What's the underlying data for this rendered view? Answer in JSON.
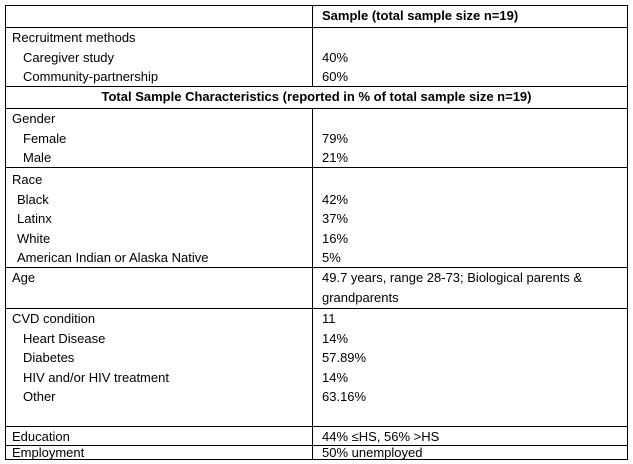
{
  "header": {
    "sample": "Sample (total sample size n=19)"
  },
  "recruitment": {
    "label": "Recruitment methods",
    "items": [
      {
        "label": "Caregiver study",
        "value": "40%"
      },
      {
        "label": "Community-partnership",
        "value": "60%"
      }
    ]
  },
  "section_title": "Total Sample Characteristics (reported in % of total sample size n=19)",
  "gender": {
    "label": "Gender",
    "items": [
      {
        "label": "Female",
        "value": "79%"
      },
      {
        "label": "Male",
        "value": "21%"
      }
    ]
  },
  "race": {
    "label": "Race",
    "items": [
      {
        "label": "Black",
        "value": "42%"
      },
      {
        "label": "Latinx",
        "value": "37%"
      },
      {
        "label": "White",
        "value": "16%"
      },
      {
        "label": "American Indian or Alaska Native",
        "value": "5%"
      }
    ]
  },
  "age": {
    "label": "Age",
    "value_line1": "49.7 years, range 28-73; Biological parents &",
    "value_line2": "grandparents"
  },
  "cvd": {
    "label": "CVD condition",
    "value": "11",
    "items": [
      {
        "label": "Heart Disease",
        "value": "14%"
      },
      {
        "label": "Diabetes",
        "value": "57.89%"
      },
      {
        "label": "HIV and/or HIV treatment",
        "value": "14%"
      },
      {
        "label": "Other",
        "value": "63.16%"
      }
    ]
  },
  "education": {
    "label": "Education",
    "value": "44% ≤HS, 56% >HS"
  },
  "employment": {
    "label": "Employment",
    "value": "50% unemployed"
  }
}
